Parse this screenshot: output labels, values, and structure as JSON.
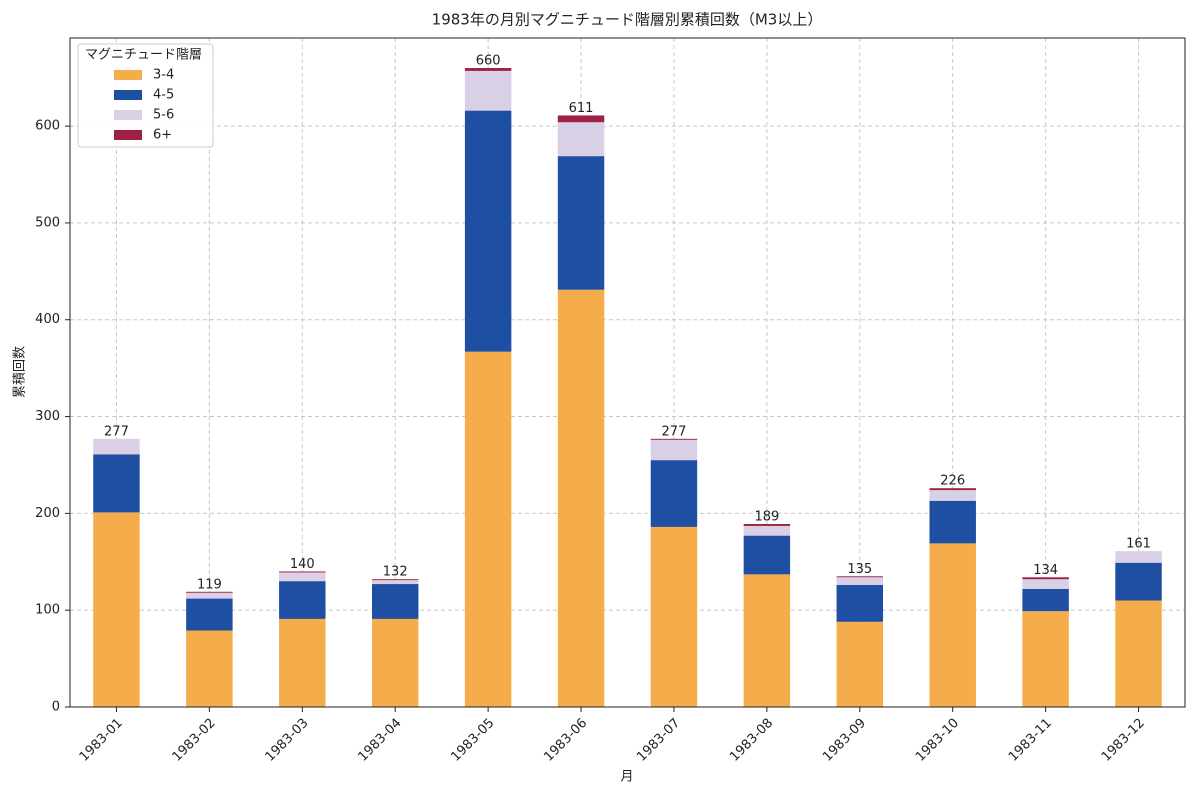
{
  "chart_data": {
    "type": "stacked_bar",
    "title": "1983年の月別マグニチュード階層別累積回数（M3以上）",
    "xlabel": "月",
    "ylabel": "累積回数",
    "legend_title": "マグニチュード階層",
    "legend": "upper left",
    "grid": true,
    "categories": [
      "1983-01",
      "1983-02",
      "1983-03",
      "1983-04",
      "1983-05",
      "1983-06",
      "1983-07",
      "1983-08",
      "1983-09",
      "1983-10",
      "1983-11",
      "1983-12"
    ],
    "series": [
      {
        "name": "3-4",
        "color": "#f5ac4a",
        "values": [
          201,
          79,
          91,
          91,
          367,
          431,
          186,
          137,
          88,
          169,
          99,
          110
        ]
      },
      {
        "name": "4-5",
        "color": "#1f4fa3",
        "values": [
          60,
          33,
          39,
          36,
          249,
          138,
          69,
          40,
          38,
          44,
          23,
          39
        ]
      },
      {
        "name": "5-6",
        "color": "#d9d0e6",
        "values": [
          16,
          6,
          9,
          4,
          41,
          35,
          21,
          10,
          8,
          11,
          10,
          12
        ]
      },
      {
        "name": "6+",
        "color": "#9e2146",
        "values": [
          0,
          1,
          1,
          1,
          3,
          7,
          1,
          2,
          1,
          2,
          2,
          0
        ]
      }
    ],
    "totals": [
      277,
      119,
      140,
      132,
      660,
      611,
      277,
      189,
      135,
      226,
      134,
      161
    ],
    "ylim": [
      0,
      691
    ],
    "yticks": [
      0,
      100,
      200,
      300,
      400,
      500,
      600
    ]
  }
}
